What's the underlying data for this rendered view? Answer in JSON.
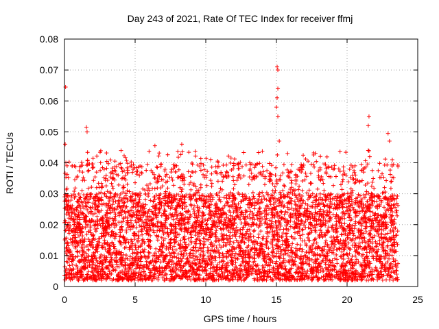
{
  "chart_data": {
    "type": "scatter",
    "title": "Day 243 of 2021, Rate Of TEC Index for receiver ffmj",
    "xlabel": "GPS time / hours",
    "ylabel": "ROTI / TECUs",
    "xlim": [
      0,
      25
    ],
    "ylim": [
      0,
      0.08
    ],
    "x_ticks": [
      0,
      5,
      10,
      15,
      20,
      25
    ],
    "x_tick_labels": [
      "0",
      "5",
      "10",
      "15",
      "20",
      "25"
    ],
    "y_ticks": [
      0,
      0.01,
      0.02,
      0.03,
      0.04,
      0.05,
      0.06,
      0.07,
      0.08
    ],
    "y_tick_labels": [
      "0",
      "0.01",
      "0.02",
      "0.03",
      "0.04",
      "0.05",
      "0.06",
      "0.07",
      "0.08"
    ],
    "grid": true,
    "marker": "+",
    "series": [
      {
        "name": "ROTI",
        "color": "#ff0000",
        "notable_points": [
          {
            "x": 0.08,
            "y": 0.0645
          },
          {
            "x": 0.05,
            "y": 0.046
          },
          {
            "x": 0.1,
            "y": 0.04
          },
          {
            "x": 1.55,
            "y": 0.0515
          },
          {
            "x": 1.6,
            "y": 0.05
          },
          {
            "x": 6.4,
            "y": 0.0455
          },
          {
            "x": 8.3,
            "y": 0.046
          },
          {
            "x": 15.05,
            "y": 0.071
          },
          {
            "x": 15.1,
            "y": 0.07
          },
          {
            "x": 15.1,
            "y": 0.064
          },
          {
            "x": 15.05,
            "y": 0.061
          },
          {
            "x": 15.0,
            "y": 0.058
          },
          {
            "x": 15.1,
            "y": 0.055
          },
          {
            "x": 15.2,
            "y": 0.047
          },
          {
            "x": 21.55,
            "y": 0.055
          },
          {
            "x": 21.5,
            "y": 0.052
          },
          {
            "x": 21.5,
            "y": 0.044
          },
          {
            "x": 22.9,
            "y": 0.0495
          },
          {
            "x": 23.0,
            "y": 0.047
          },
          {
            "x": 23.2,
            "y": 0.041
          }
        ],
        "bulk_envelope": {
          "x_range": [
            0,
            23.6
          ],
          "typical_range": [
            0.002,
            0.03
          ],
          "upper_band": 0.04
        }
      }
    ]
  }
}
